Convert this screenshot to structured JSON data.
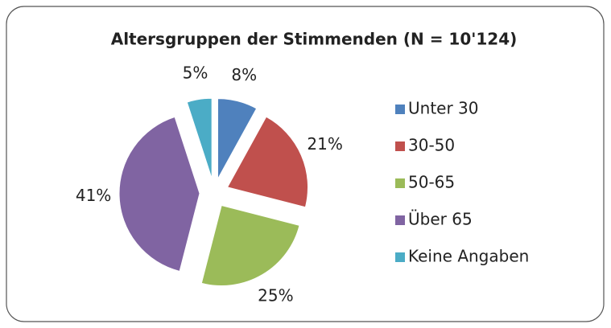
{
  "chart_data": {
    "type": "pie",
    "title": "Altersgruppen der Stimmenden (N = 10'124)",
    "categories": [
      "Unter 30",
      "30-50",
      "50-65",
      "Über 65",
      "Keine Angaben"
    ],
    "values": [
      8,
      21,
      25,
      41,
      5
    ],
    "value_labels": [
      "8%",
      "21%",
      "25%",
      "41%",
      "5%"
    ],
    "colors": [
      "#4f81bd",
      "#c0504d",
      "#9bbb59",
      "#8064a2",
      "#4bacc6"
    ],
    "legend": "right"
  }
}
